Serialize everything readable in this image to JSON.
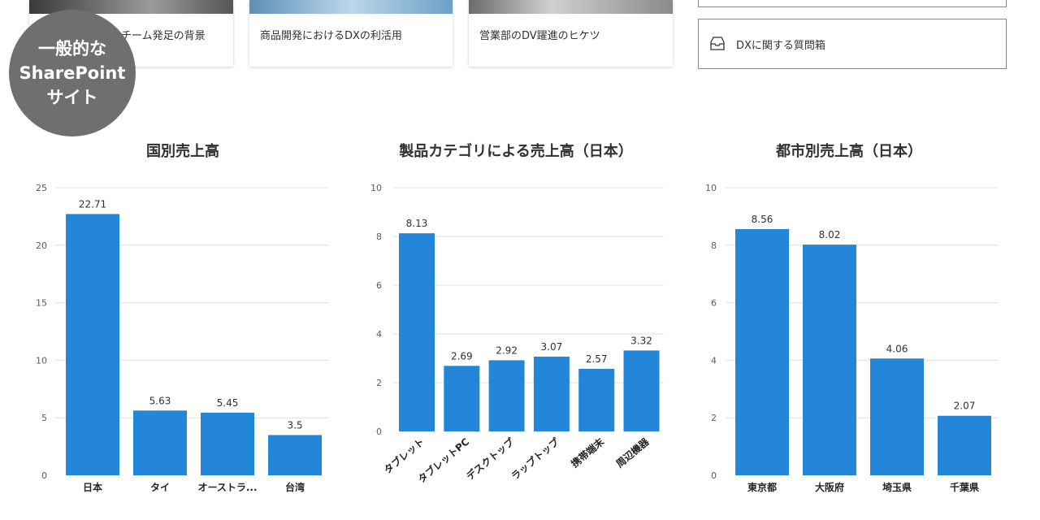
{
  "cards": [
    {
      "title": "チーム発足の背景"
    },
    {
      "title": "商品開発におけるDXの利活用"
    },
    {
      "title": "営業部のDV躍進のヒケツ"
    }
  ],
  "quick_link": {
    "label": "DXに関する質問箱",
    "icon": "inbox-tray-icon"
  },
  "badge": {
    "line1": "一般的な",
    "line2": "SharePoint",
    "line3": "サイト"
  },
  "colors": {
    "bar": "#2486d9",
    "grid": "#e1dfdd",
    "badge": "#6f6f6f"
  },
  "chart_data": [
    {
      "type": "bar",
      "title": "国別売上高",
      "categories": [
        "日本",
        "タイ",
        "オーストラ...",
        "台湾"
      ],
      "values": [
        22.71,
        5.63,
        5.45,
        3.5
      ],
      "ylim": [
        0,
        25
      ],
      "yticks": [
        0,
        5,
        10,
        15,
        20,
        25
      ],
      "grid": true
    },
    {
      "type": "bar",
      "title": "製品カテゴリによる売上高（日本）",
      "categories": [
        "タブレット",
        "タブレットPC",
        "デスクトップ",
        "ラップトップ",
        "携帯端末",
        "周辺機器"
      ],
      "values": [
        8.13,
        2.69,
        2.92,
        3.07,
        2.57,
        3.32
      ],
      "ylim": [
        0,
        10
      ],
      "yticks": [
        0,
        2,
        4,
        6,
        8,
        10
      ],
      "grid": true,
      "rotated_labels": true
    },
    {
      "type": "bar",
      "title": "都市別売上高（日本）",
      "categories": [
        "東京都",
        "大阪府",
        "埼玉県",
        "千葉県"
      ],
      "values": [
        8.56,
        8.02,
        4.06,
        2.07
      ],
      "ylim": [
        0,
        10
      ],
      "yticks": [
        0,
        2,
        4,
        6,
        8,
        10
      ],
      "grid": true
    }
  ]
}
